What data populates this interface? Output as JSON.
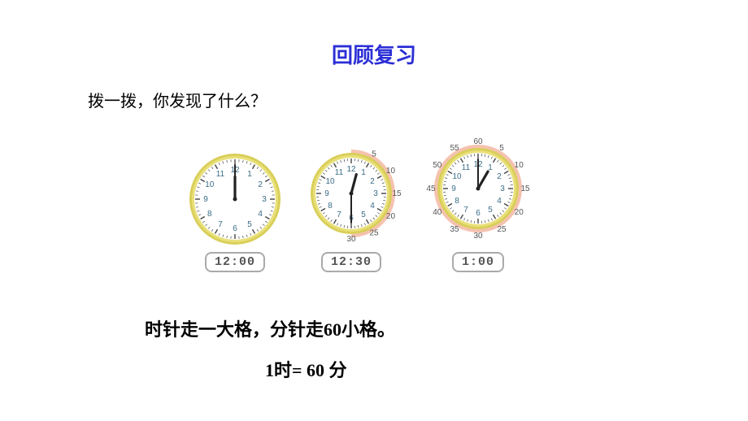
{
  "title": {
    "text": "回顾复习",
    "color": "#2b2fd6",
    "fontsize": 26
  },
  "question": {
    "text": "拨一拨，你发现了什么？",
    "color": "#000000",
    "fontsize": 20
  },
  "clocks": [
    {
      "size": 118,
      "radius": 50,
      "rim_outer": "#d9cf5a",
      "rim_inner": "#e9e07a",
      "face_color": "#ffffff",
      "tick_color": "#444444",
      "hour_num_color": "#3a6d86",
      "hour_fontsize": 10,
      "hour_angle": 0,
      "minute_angle": 0,
      "sector": null,
      "outer_labels": null,
      "digital": "12:00",
      "digital_fontsize": 15
    },
    {
      "size": 132,
      "radius": 44,
      "rim_outer": "#d9cf5a",
      "rim_inner": "#e9e07a",
      "face_color": "#ffffff",
      "tick_color": "#444444",
      "hour_num_color": "#3a6d86",
      "hour_fontsize": 10,
      "hour_angle": 15,
      "minute_angle": 180,
      "sector": {
        "start": 0,
        "end": 180,
        "fill": "#f5c2b0"
      },
      "outer_labels": {
        "fontsize": 10,
        "color": "#555555",
        "radius": 56,
        "items": [
          {
            "text": "5",
            "angle": 30
          },
          {
            "text": "10",
            "angle": 60
          },
          {
            "text": "15",
            "angle": 90
          },
          {
            "text": "20",
            "angle": 120
          },
          {
            "text": "25",
            "angle": 150
          },
          {
            "text": "30",
            "angle": 180
          }
        ]
      },
      "digital": "12:30",
      "digital_fontsize": 15
    },
    {
      "size": 144,
      "radius": 44,
      "rim_outer": "#d9cf5a",
      "rim_inner": "#e9e07a",
      "face_color": "#ffffff",
      "tick_color": "#444444",
      "hour_num_color": "#3a6d86",
      "hour_fontsize": 10,
      "hour_angle": 30,
      "minute_angle": 0,
      "sector": {
        "start": 0,
        "end": 359.9,
        "fill": "#f5c2b0"
      },
      "outer_labels": {
        "fontsize": 10,
        "color": "#555555",
        "radius": 58,
        "items": [
          {
            "text": "5",
            "angle": 30
          },
          {
            "text": "10",
            "angle": 60
          },
          {
            "text": "15",
            "angle": 90
          },
          {
            "text": "20",
            "angle": 120
          },
          {
            "text": "25",
            "angle": 150
          },
          {
            "text": "30",
            "angle": 180
          },
          {
            "text": "35",
            "angle": 210
          },
          {
            "text": "40",
            "angle": 240
          },
          {
            "text": "45",
            "angle": 270
          },
          {
            "text": "50",
            "angle": 300
          },
          {
            "text": "55",
            "angle": 330
          },
          {
            "text": "60",
            "angle": 360
          }
        ]
      },
      "digital": "1:00",
      "digital_fontsize": 15
    }
  ],
  "statement1": {
    "prefix": "时针走一大格，分针走",
    "answer": "60",
    "suffix": "小格。",
    "fontsize": 22,
    "color": "#000000",
    "answer_color": "#000000"
  },
  "statement2": {
    "prefix": "1时= ",
    "answer": "60 ",
    "suffix": " 分",
    "fontsize": 22,
    "color": "#000000",
    "answer_color": "#000000"
  }
}
